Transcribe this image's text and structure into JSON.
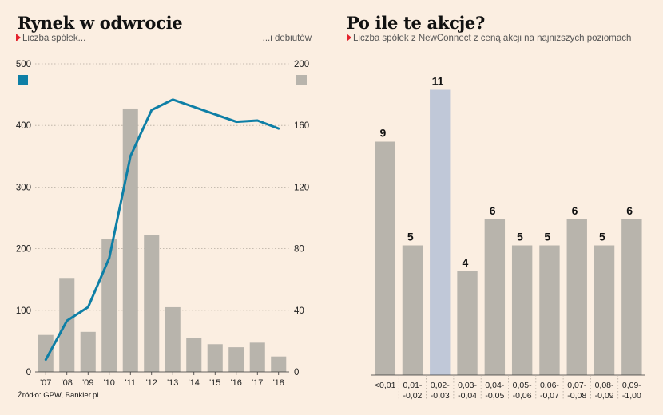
{
  "colors": {
    "background": "#fbeee1",
    "bar": "#b8b4ac",
    "highlight": "#c0c8d8",
    "line": "#0e7fa6",
    "marker": "#e3222c",
    "grid": "#b5aba0"
  },
  "chart_data": [
    {
      "type": "bar+line",
      "title": "Rynek w odwrocie",
      "subtitle_left": "Liczba spółek...",
      "subtitle_right": "...i debiutów",
      "categories": [
        "'07",
        "'08",
        "'09",
        "'10",
        "'11",
        "'12",
        "'13",
        "'14",
        "'15",
        "'16",
        "'17",
        "'18"
      ],
      "y_left": {
        "range": [
          0,
          500
        ],
        "ticks": [
          "0",
          "100",
          "200",
          "300",
          "400",
          "500"
        ]
      },
      "y_right": {
        "range": [
          0,
          200
        ],
        "ticks": [
          "0",
          "40",
          "80",
          "120",
          "160",
          "200"
        ]
      },
      "legend": {
        "line_swatch": "left-top",
        "bar_swatch": "right-top"
      },
      "grid": true,
      "series": [
        {
          "type": "bar",
          "axis": "right",
          "values": [
            24,
            61,
            26,
            86,
            171,
            89,
            42,
            22,
            18,
            16,
            19,
            10
          ]
        },
        {
          "type": "line",
          "axis": "left",
          "values": [
            20,
            83,
            105,
            185,
            350,
            425,
            442,
            430,
            418,
            406,
            408,
            395
          ]
        }
      ]
    },
    {
      "type": "bar",
      "title": "Po ile te akcje?",
      "subtitle": "Liczba spółek z NewConnect z ceną akcji na najniższych poziomach",
      "categories": [
        [
          "<0,01",
          ""
        ],
        [
          "0,01-",
          "-0,02"
        ],
        [
          "0,02-",
          "-0,03"
        ],
        [
          "0,03-",
          "-0,04"
        ],
        [
          "0,04-",
          "-0,05"
        ],
        [
          "0,05-",
          "-0,06"
        ],
        [
          "0,06-",
          "-0,07"
        ],
        [
          "0,07-",
          "-0,08"
        ],
        [
          "0,08-",
          "-0,09"
        ],
        [
          "0,09-",
          "-1,00"
        ]
      ],
      "values": [
        9,
        5,
        11,
        4,
        6,
        5,
        5,
        6,
        5,
        6
      ],
      "data_labels": [
        "9",
        "5",
        "11",
        "4",
        "6",
        "5",
        "5",
        "6",
        "5",
        "6"
      ],
      "highlight_index": 2,
      "ylim": [
        0,
        12
      ]
    }
  ],
  "source": "Źródło: GPW, Bankier.pl"
}
